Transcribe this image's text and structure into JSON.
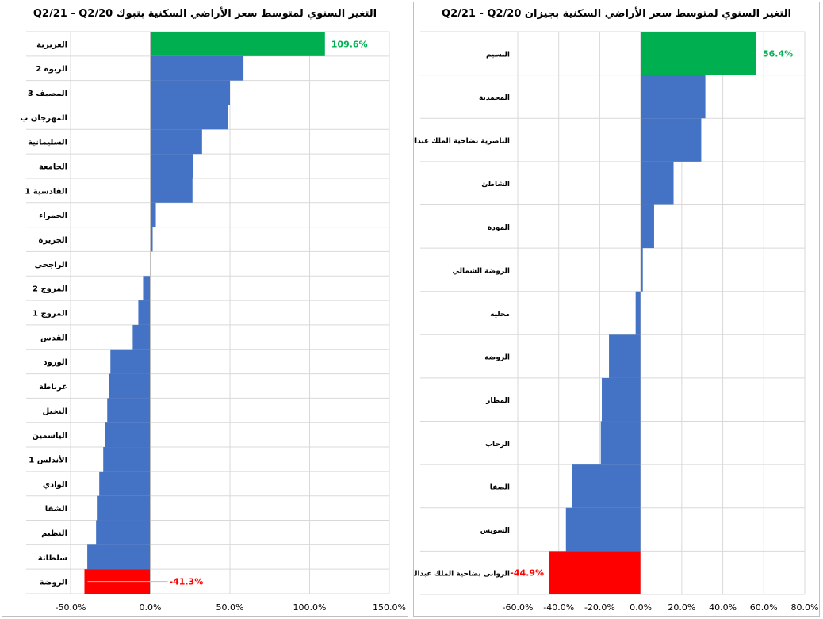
{
  "charts": [
    {
      "title": "التغير السنوي لمتوسط سعر الأراضي السكنية بتبوك Q2/21 - Q2/20",
      "chart_data": {
        "type": "bar",
        "orientation": "horizontal",
        "title": "التغير السنوي لمتوسط سعر الأراضي السكنية بتبوك Q2/21 - Q2/20",
        "categories": [
          "العزيزية",
          "الربوة 2",
          "المصيف 3",
          "المهرجان ب",
          "السليمانية",
          "الجامعة",
          "القادسية 1",
          "الحمراء",
          "الجزيرة",
          "الراجحي",
          "المروج 2",
          "المروج 1",
          "القدس",
          "الورود",
          "غرناطة",
          "النخيل",
          "الياسمين",
          "الأندلس 1",
          "الوادي",
          "الشفا",
          "النظيم",
          "سلطانة",
          "الروضة"
        ],
        "values": [
          109.6,
          58.5,
          50.0,
          48.5,
          32.5,
          27.0,
          26.5,
          3.5,
          1.5,
          0.5,
          -4.5,
          -7.5,
          -11.0,
          -25.0,
          -26.0,
          -27.0,
          -28.5,
          -29.5,
          -32.0,
          -33.5,
          -34.0,
          -39.5,
          -41.3
        ],
        "colors": [
          "#00b050",
          "#4472c4",
          "#4472c4",
          "#4472c4",
          "#4472c4",
          "#4472c4",
          "#4472c4",
          "#4472c4",
          "#4472c4",
          "#4472c4",
          "#4472c4",
          "#4472c4",
          "#4472c4",
          "#4472c4",
          "#4472c4",
          "#4472c4",
          "#4472c4",
          "#4472c4",
          "#4472c4",
          "#4472c4",
          "#4472c4",
          "#4472c4",
          "#ff0000"
        ],
        "data_labels": [
          {
            "index": 0,
            "text": "109.6%",
            "color": "#00b050"
          },
          {
            "index": 22,
            "text": "-41.3%",
            "color": "#ff0000"
          }
        ],
        "xlim": [
          -50,
          150
        ],
        "xticks": [
          -50,
          0,
          50,
          100,
          150
        ],
        "xtick_labels": [
          "-50.0%",
          "0.0%",
          "50.0%",
          "100.0%",
          "150.0%"
        ],
        "grid": true
      }
    },
    {
      "title": "التغير السنوي لمتوسط سعر الأراضي السكنية بجيزان Q2/21 - Q2/20",
      "chart_data": {
        "type": "bar",
        "orientation": "horizontal",
        "title": "التغير السنوي لمتوسط سعر الأراضي السكنية بجيزان Q2/21 - Q2/20",
        "categories": [
          "النسيم",
          "المحمدية",
          "الناصرية بضاحية الملك عبدالله",
          "الشاطئ",
          "المودة",
          "الروضة الشمالي",
          "محليه",
          "الروضة",
          "المطار",
          "الرحاب",
          "الصفا",
          "السويس",
          "الروابى بضاحية الملك عبدالله"
        ],
        "values": [
          56.4,
          31.5,
          29.5,
          16.0,
          6.5,
          1.0,
          -2.5,
          -15.5,
          -19.0,
          -19.5,
          -33.5,
          -36.5,
          -44.9
        ],
        "colors": [
          "#00b050",
          "#4472c4",
          "#4472c4",
          "#4472c4",
          "#4472c4",
          "#4472c4",
          "#4472c4",
          "#4472c4",
          "#4472c4",
          "#4472c4",
          "#4472c4",
          "#4472c4",
          "#ff0000"
        ],
        "data_labels": [
          {
            "index": 0,
            "text": "56.4%",
            "color": "#00b050"
          },
          {
            "index": 12,
            "text": "-44.9%",
            "color": "#ff0000"
          }
        ],
        "xlim": [
          -60,
          80
        ],
        "xticks": [
          -60,
          -40,
          -20,
          0,
          20,
          40,
          60,
          80
        ],
        "xtick_labels": [
          "-60.0%",
          "-40.0%",
          "-20.0%",
          "0.0%",
          "20.0%",
          "40.0%",
          "60.0%",
          "80.0%"
        ],
        "grid": true
      }
    }
  ]
}
